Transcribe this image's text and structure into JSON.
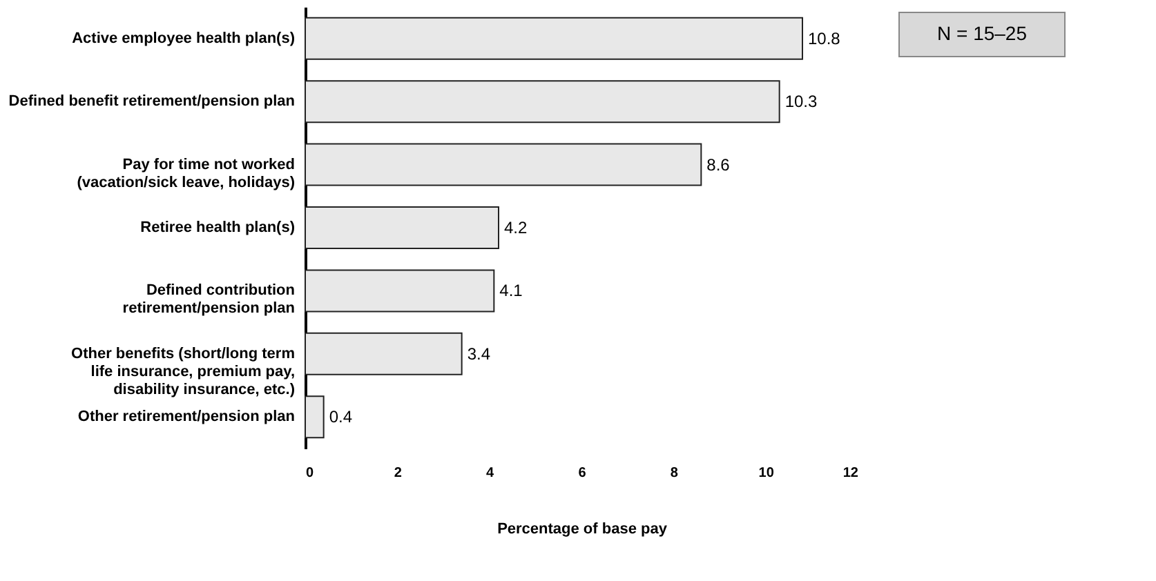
{
  "chart_data": {
    "type": "bar",
    "orientation": "horizontal",
    "xlabel": "Percentage of base pay",
    "categories": [
      "Active employee health plan(s)",
      "Defined benefit retirement/pension plan",
      "Pay for time not worked\n(vacation/sick leave, holidays)",
      "Retiree health plan(s)",
      "Defined contribution\nretirement/pension plan",
      "Other benefits (short/long term\nlife insurance, premium pay,\ndisability insurance, etc.)",
      "Other retirement/pension plan"
    ],
    "values": [
      10.8,
      10.3,
      8.6,
      4.2,
      4.1,
      3.4,
      0.4
    ],
    "color": "#e8e8e8",
    "xlim": [
      0,
      12
    ],
    "xticks": [
      0,
      2,
      4,
      6,
      8,
      10,
      12
    ],
    "data_labels": true,
    "grid": false,
    "annotations": [
      "N = 15–25"
    ]
  }
}
